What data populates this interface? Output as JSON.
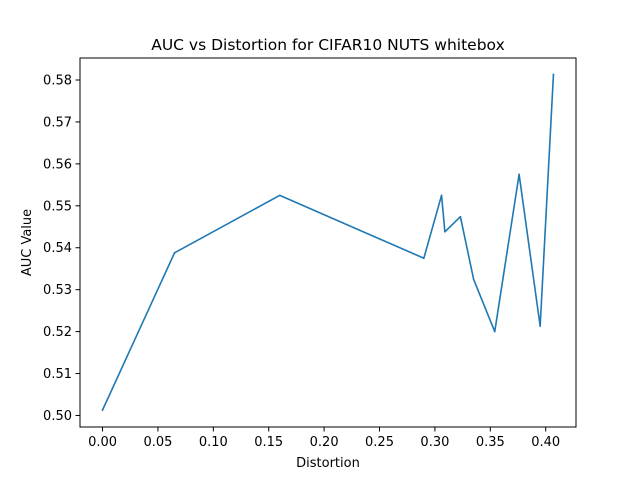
{
  "chart_data": {
    "type": "line",
    "title": "AUC vs Distortion for CIFAR10 NUTS whitebox",
    "xlabel": "Distortion",
    "ylabel": "AUC Value",
    "xlim": [
      -0.02035,
      0.42735
    ],
    "ylim": [
      0.49725,
      0.58525
    ],
    "xticks": [
      0.0,
      0.05,
      0.1,
      0.15,
      0.2,
      0.25,
      0.3,
      0.35,
      0.4
    ],
    "xtick_labels": [
      "0.00",
      "0.05",
      "0.10",
      "0.15",
      "0.20",
      "0.25",
      "0.30",
      "0.35",
      "0.40"
    ],
    "yticks": [
      0.5,
      0.51,
      0.52,
      0.53,
      0.54,
      0.55,
      0.56,
      0.57,
      0.58
    ],
    "ytick_labels": [
      "0.50",
      "0.51",
      "0.52",
      "0.53",
      "0.54",
      "0.55",
      "0.56",
      "0.57",
      "0.58"
    ],
    "grid": false,
    "legend": "none",
    "series": [
      {
        "color": "#1f77b4",
        "x": [
          0.0,
          0.065,
          0.16,
          0.29,
          0.306,
          0.309,
          0.323,
          0.335,
          0.354,
          0.376,
          0.395,
          0.407
        ],
        "y": [
          0.5013,
          0.5388,
          0.5525,
          0.5375,
          0.5525,
          0.5438,
          0.5474,
          0.5324,
          0.52,
          0.5575,
          0.5213,
          0.5813
        ]
      }
    ]
  }
}
